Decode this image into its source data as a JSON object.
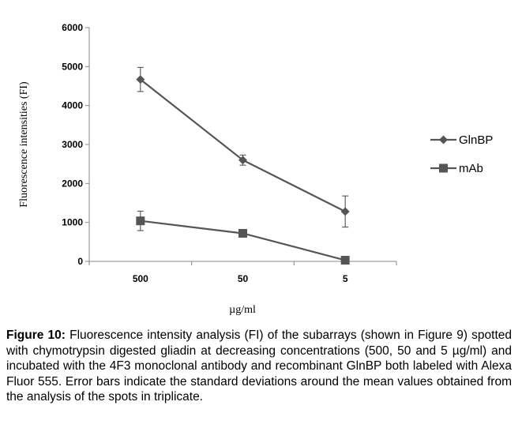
{
  "chart_data": {
    "type": "line",
    "categories": [
      "500",
      "50",
      "5"
    ],
    "ylabel": "Fluorescence intensities (FI)",
    "xlabel": "µg/ml",
    "ylim": [
      0,
      6000
    ],
    "yticks": [
      0,
      1000,
      2000,
      3000,
      4000,
      5000,
      6000
    ],
    "grid": false,
    "legend_position": "right",
    "series": [
      {
        "name": "GlnBP",
        "marker": "diamond",
        "color": "#555555",
        "values": [
          4670,
          2600,
          1280
        ],
        "errors": [
          310,
          130,
          400
        ]
      },
      {
        "name": "mAb",
        "marker": "square",
        "color": "#555555",
        "values": [
          1040,
          720,
          30
        ],
        "errors": [
          250,
          0,
          0
        ]
      }
    ]
  },
  "caption": {
    "label": "Figure 10:",
    "text": " Fluorescence intensity analysis (FI) of the subarrays (shown in Figure 9) spotted with chymotrypsin digested gliadin at decreasing concentrations (500, 50 and 5 µg/ml) and incubated with the 4F3 monoclonal antibody and recombinant GlnBP both labeled with Alexa Fluor 555. Error bars indicate the standard deviations around the mean values obtained from the analysis of the spots in triplicate."
  }
}
